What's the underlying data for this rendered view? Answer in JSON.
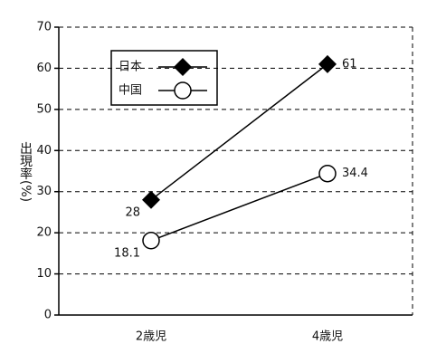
{
  "chart_data": {
    "type": "line",
    "y_label": "出現率(%)",
    "categories": [
      "2歳児",
      "4歳児"
    ],
    "series": [
      {
        "name": "日本",
        "color": "#000000",
        "marker": "diamond",
        "values": [
          28,
          61
        ]
      },
      {
        "name": "中国",
        "color": "#000000",
        "marker": "circle",
        "values": [
          18.1,
          34.4
        ]
      }
    ],
    "ylim": [
      0,
      70
    ],
    "yticks": [
      0,
      10,
      20,
      30,
      40,
      50,
      60,
      70
    ],
    "grid": true
  }
}
